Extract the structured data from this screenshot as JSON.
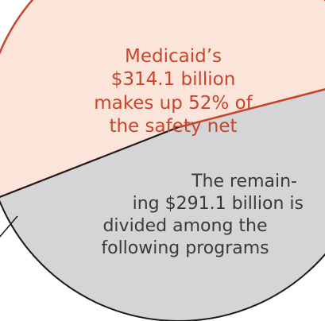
{
  "chart_data": {
    "type": "pie",
    "title": "",
    "slices": [
      {
        "name": "Medicaid",
        "value": 314.1,
        "percent": 52,
        "color": "#fbe4da",
        "stroke": "#c8452c",
        "text_color": "#c8452c",
        "lines": [
          "Medicaid’s",
          "$314.1 billion",
          "makes up 52% of",
          "the safety net"
        ]
      },
      {
        "name": "Remaining programs",
        "value": 291.1,
        "percent": 48,
        "color": "#d4d5d7",
        "stroke": "#1a1a1a",
        "text_color": "#3a3a3a",
        "lines": [
          "The remain-",
          "ing $291.1 billion is",
          "divided among the",
          "following programs"
        ]
      }
    ]
  }
}
